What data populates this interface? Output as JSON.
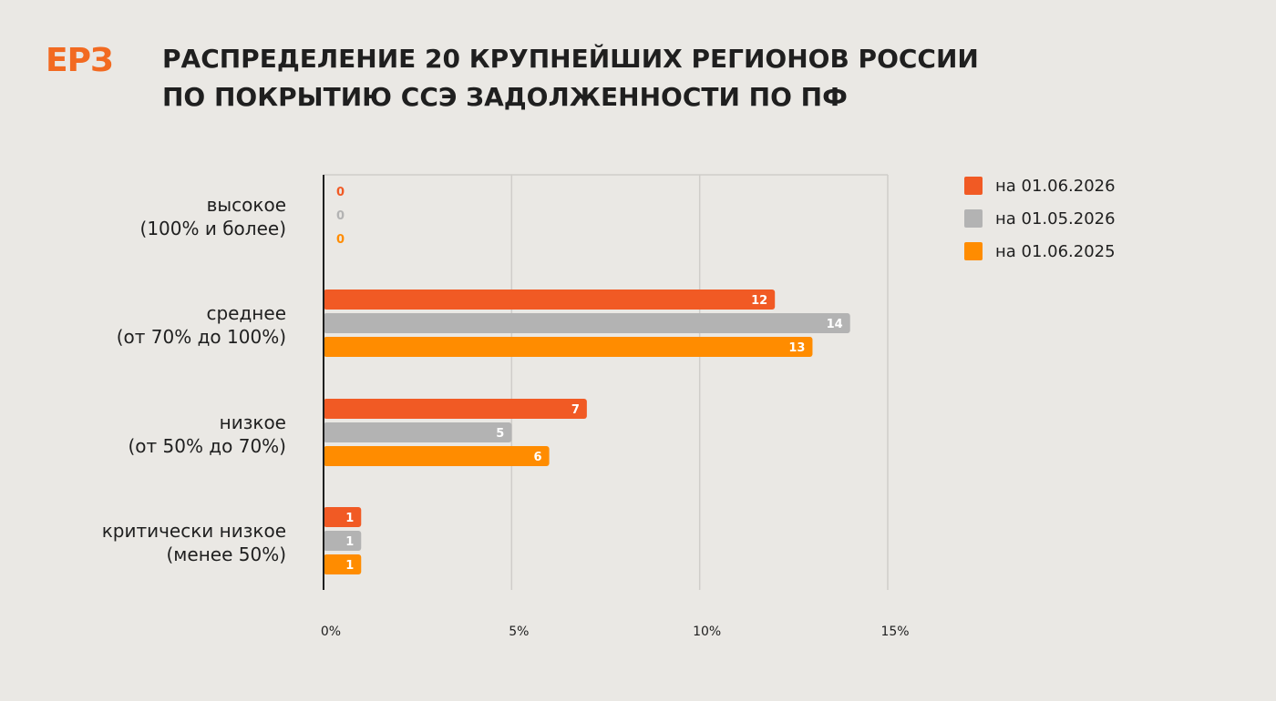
{
  "header": {
    "logo": "ЕРЗ",
    "title_line1": "РАСПРЕДЕЛЕНИЕ 20 КРУПНЕЙШИХ РЕГИОНОВ РОССИИ",
    "title_line2": "ПО ПОКРЫТИЮ ССЭ ЗАДОЛЖЕННОСТИ ПО ПФ"
  },
  "colors": {
    "accent": "#f26a21",
    "series1": "#f15a24",
    "series2": "#b3b3b3",
    "series3": "#ff8c00",
    "axis": "#1f1f1f",
    "grid": "#cfcdc9"
  },
  "chart_data": {
    "type": "bar",
    "orientation": "horizontal",
    "title": "РАСПРЕДЕЛЕНИЕ 20 КРУПНЕЙШИХ РЕГИОНОВ РОССИИ ПО ПОКРЫТИЮ ССЭ ЗАДОЛЖЕННОСТИ ПО ПФ",
    "categories": [
      [
        "высокое",
        "(100% и более)"
      ],
      [
        "среднее",
        "(от 70% до 100%)"
      ],
      [
        "низкое",
        "(от 50% до 70%)"
      ],
      [
        "критически низкое",
        "(менее 50%)"
      ]
    ],
    "series": [
      {
        "name": "на 01.06.2026",
        "values": [
          0,
          12,
          7,
          1
        ]
      },
      {
        "name": "на 01.05.2026",
        "values": [
          0,
          14,
          5,
          1
        ]
      },
      {
        "name": "на 01.06.2025",
        "values": [
          0,
          13,
          6,
          1
        ]
      }
    ],
    "xlim": [
      0,
      15
    ],
    "x_ticks": [
      0,
      5,
      10,
      15
    ],
    "x_tick_labels": [
      "0%",
      "5%",
      "10%",
      "15%"
    ],
    "grid": true,
    "legend_position": "top-right"
  }
}
